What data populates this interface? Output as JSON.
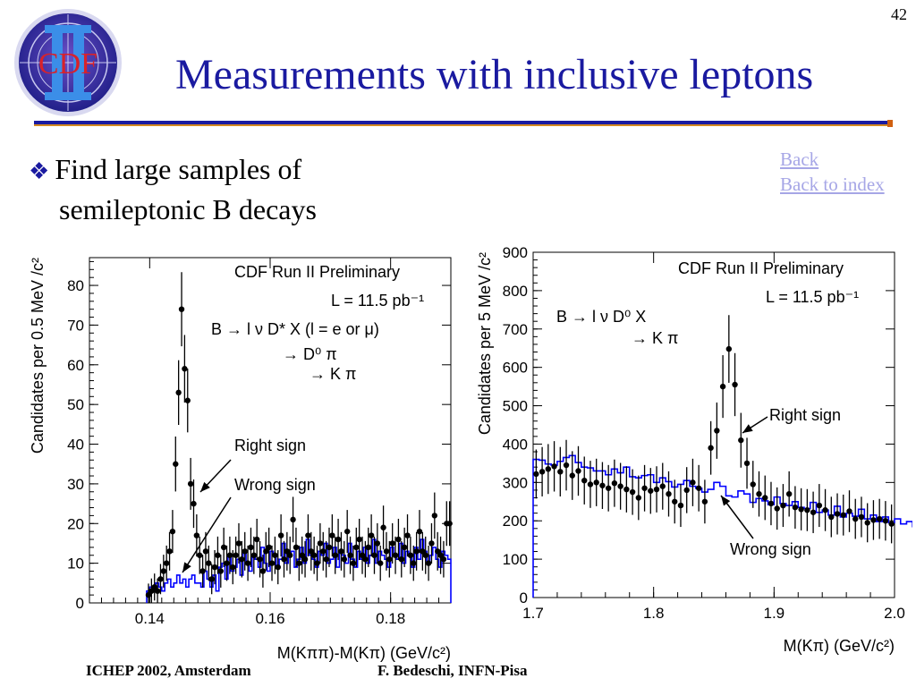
{
  "slide": {
    "number": "42",
    "logo_text": "CDF",
    "title": "Measurements with inclusive leptons",
    "bullet_line1": "Find large samples of",
    "bullet_line2": "semileptonic B decays",
    "links": [
      "Back",
      "Back to index"
    ],
    "footer_left": "ICHEP 2002, Amsterdam",
    "footer_right": "F. Bedeschi, INFN-Pisa"
  },
  "colors": {
    "title": "#1a1aa0",
    "link": "#a6a6e6",
    "wrong_sign_hist": "#0000ff",
    "right_sign_points": "#000000",
    "rule_orange": "#d48a20"
  },
  "chart_data": [
    {
      "type": "scatter",
      "xlabel": "M(Kππ)-M(Kπ) (GeV/c²)",
      "ylabel": "Candidates per 0.5 MeV /c²",
      "xlim": [
        0.13,
        0.19
      ],
      "ylim": [
        0,
        87
      ],
      "xticks": [
        "0.14",
        "0.16",
        "0.18"
      ],
      "yticks": [
        "0",
        "10",
        "20",
        "30",
        "40",
        "50",
        "60",
        "70",
        "80"
      ],
      "annotations": [
        "CDF Run II Preliminary",
        "L = 11.5 pb⁻¹",
        "B → l ν D* X (l = e or μ)",
        "→ D⁰ π",
        "→ K π",
        "Right sign",
        "Wrong sign"
      ],
      "series": [
        {
          "name": "Right sign",
          "style": "points",
          "x": [
            0.1398,
            0.1403,
            0.1408,
            0.1413,
            0.1418,
            0.1423,
            0.1428,
            0.1433,
            0.1438,
            0.1443,
            0.1448,
            0.1453,
            0.1458,
            0.1463,
            0.1468,
            0.1473,
            0.1478,
            0.1483,
            0.1488,
            0.1493,
            0.1498,
            0.1503,
            0.1508,
            0.1513,
            0.1518,
            0.1523,
            0.1528,
            0.1533,
            0.1538,
            0.1543,
            0.1548,
            0.1553,
            0.1558,
            0.1563,
            0.1568,
            0.1573,
            0.1578,
            0.1583,
            0.1588,
            0.1593,
            0.1598,
            0.1603,
            0.1608,
            0.1613,
            0.1618,
            0.1623,
            0.1628,
            0.1633,
            0.1638,
            0.1643,
            0.1648,
            0.1653,
            0.1658,
            0.1663,
            0.1668,
            0.1673,
            0.1678,
            0.1683,
            0.1688,
            0.1693,
            0.1698,
            0.1703,
            0.1708,
            0.1713,
            0.1718,
            0.1723,
            0.1728,
            0.1733,
            0.1738,
            0.1743,
            0.1748,
            0.1753,
            0.1758,
            0.1763,
            0.1768,
            0.1773,
            0.1778,
            0.1783,
            0.1788,
            0.1793,
            0.1798,
            0.1803,
            0.1808,
            0.1813,
            0.1818,
            0.1823,
            0.1828,
            0.1833,
            0.1838,
            0.1843,
            0.1848,
            0.1853,
            0.1858,
            0.1863,
            0.1868,
            0.1873,
            0.1878,
            0.1883,
            0.1888,
            0.1893,
            0.1898
          ],
          "y": [
            2,
            3,
            4,
            3,
            6,
            8,
            10,
            13,
            18,
            35,
            53,
            74,
            59,
            51,
            30,
            25,
            17,
            12,
            8,
            13,
            10,
            6,
            9,
            12,
            8,
            14,
            10,
            12,
            9,
            12,
            15,
            11,
            13,
            10,
            14,
            12,
            16,
            11,
            8,
            13,
            14,
            10,
            12,
            9,
            17,
            11,
            13,
            12,
            21,
            14,
            10,
            12,
            11,
            17,
            13,
            12,
            10,
            15,
            13,
            11,
            14,
            17,
            12,
            16,
            13,
            11,
            18,
            12,
            10,
            14,
            16,
            12,
            11,
            14,
            17,
            12,
            15,
            10,
            19,
            13,
            11,
            15,
            12,
            16,
            11,
            14,
            17,
            12,
            10,
            13,
            18,
            13,
            12,
            10,
            15,
            22,
            13,
            12,
            11,
            20,
            20
          ]
        },
        {
          "name": "Wrong sign",
          "style": "histogram",
          "x_start": 0.1395,
          "bin_width": 0.0005,
          "y": [
            3,
            4,
            3,
            5,
            4,
            3,
            5,
            6,
            4,
            5,
            7,
            5,
            6,
            4,
            6,
            7,
            5,
            5,
            4,
            8,
            6,
            4,
            7,
            3,
            9,
            10,
            6,
            12,
            8,
            9,
            11,
            7,
            13,
            10,
            8,
            12,
            11,
            9,
            14,
            10,
            8,
            13,
            12,
            9,
            11,
            15,
            10,
            12,
            13,
            9,
            11,
            14,
            10,
            16,
            12,
            11,
            9,
            13,
            12,
            15,
            10,
            11,
            14,
            9,
            13,
            12,
            10,
            15,
            11,
            9,
            13,
            11,
            14,
            10,
            12,
            16,
            10,
            13,
            12,
            11,
            9,
            14,
            12,
            11,
            15,
            10,
            13,
            12,
            9,
            14,
            11,
            16,
            13,
            10,
            12,
            14,
            11,
            9,
            13,
            12,
            11
          ]
        }
      ]
    },
    {
      "type": "scatter",
      "xlabel": "M(Kπ) (GeV/c²)",
      "ylabel": "Candidates per 5 MeV /c²",
      "xlim": [
        1.7,
        2.0
      ],
      "ylim": [
        0,
        900
      ],
      "xticks": [
        "1.7",
        "1.8",
        "1.9",
        "2.0"
      ],
      "yticks": [
        "0",
        "100",
        "200",
        "300",
        "400",
        "500",
        "600",
        "700",
        "800",
        "900"
      ],
      "annotations": [
        "CDF Run II Preliminary",
        "L = 11.5 pb⁻¹",
        "B → l ν D⁰ X",
        "→ K π",
        "Right sign",
        "Wrong sign"
      ],
      "series": [
        {
          "name": "Right sign",
          "style": "points",
          "x": [
            1.7025,
            1.7075,
            1.7125,
            1.7175,
            1.7225,
            1.7275,
            1.7325,
            1.7375,
            1.7425,
            1.7475,
            1.7525,
            1.7575,
            1.7625,
            1.7675,
            1.7725,
            1.7775,
            1.7825,
            1.7875,
            1.7925,
            1.7975,
            1.8025,
            1.8075,
            1.8125,
            1.8175,
            1.8225,
            1.8275,
            1.8325,
            1.8375,
            1.8425,
            1.8475,
            1.8525,
            1.8575,
            1.8625,
            1.8675,
            1.8725,
            1.8775,
            1.8825,
            1.8875,
            1.8925,
            1.8975,
            1.9025,
            1.9075,
            1.9125,
            1.9175,
            1.9225,
            1.9275,
            1.9325,
            1.9375,
            1.9425,
            1.9475,
            1.9525,
            1.9575,
            1.9625,
            1.9675,
            1.9725,
            1.9775,
            1.9825,
            1.9875,
            1.9925,
            1.9975
          ],
          "y": [
            322,
            328,
            335,
            342,
            328,
            345,
            318,
            330,
            305,
            295,
            300,
            292,
            285,
            298,
            290,
            282,
            275,
            260,
            285,
            278,
            282,
            290,
            270,
            250,
            240,
            280,
            300,
            285,
            250,
            390,
            435,
            550,
            648,
            555,
            410,
            350,
            295,
            270,
            260,
            245,
            232,
            240,
            270,
            235,
            230,
            228,
            222,
            240,
            228,
            210,
            218,
            215,
            225,
            205,
            210,
            195,
            202,
            205,
            200,
            192
          ]
        },
        {
          "name": "Wrong sign",
          "style": "histogram",
          "x_start": 1.7,
          "bin_width": 0.005,
          "y": [
            360,
            358,
            348,
            345,
            355,
            365,
            370,
            352,
            340,
            338,
            330,
            330,
            320,
            335,
            325,
            340,
            315,
            312,
            318,
            320,
            300,
            312,
            302,
            288,
            295,
            305,
            290,
            285,
            275,
            282,
            300,
            290,
            265,
            262,
            278,
            270,
            248,
            258,
            252,
            242,
            262,
            245,
            240,
            250,
            235,
            232,
            248,
            222,
            228,
            215,
            238,
            210,
            220,
            212,
            230,
            205,
            215,
            198,
            210,
            195,
            205,
            192,
            198,
            185
          ]
        }
      ]
    }
  ]
}
